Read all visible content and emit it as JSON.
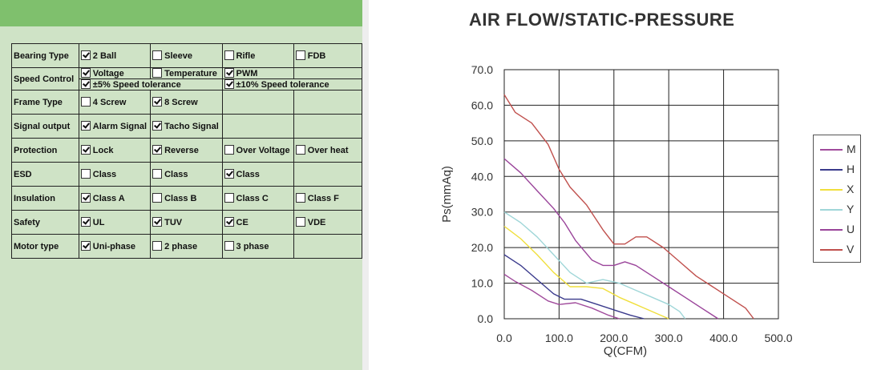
{
  "spec_table": {
    "rows": [
      {
        "label": "Bearing Type",
        "options": [
          {
            "text": "2 Ball",
            "checked": true
          },
          {
            "text": "Sleeve",
            "checked": false
          },
          {
            "text": "Rifle",
            "checked": false
          },
          {
            "text": "FDB",
            "checked": false
          }
        ]
      },
      {
        "label": "Speed Control",
        "sub": [
          [
            {
              "text": "Voltage",
              "checked": true
            },
            {
              "text": "Temperature",
              "checked": false
            },
            {
              "text": "PWM",
              "checked": true
            }
          ],
          [
            {
              "text": "±5% Speed tolerance",
              "checked": true
            },
            {
              "text": "±10% Speed tolerance",
              "checked": true
            }
          ]
        ]
      },
      {
        "label": "Frame Type",
        "options": [
          {
            "text": "4 Screw",
            "checked": false
          },
          {
            "text": "8 Screw",
            "checked": true
          }
        ]
      },
      {
        "label": "Signal output",
        "options": [
          {
            "text": "Alarm Signal",
            "checked": true
          },
          {
            "text": "Tacho Signal",
            "checked": true
          }
        ]
      },
      {
        "label": "Protection",
        "options": [
          {
            "text": "Lock",
            "checked": true
          },
          {
            "text": "Reverse",
            "checked": true
          },
          {
            "text": "Over Voltage",
            "checked": false
          },
          {
            "text": "Over heat",
            "checked": false
          }
        ]
      },
      {
        "label": "ESD",
        "options": [
          {
            "text": "Class",
            "checked": false
          },
          {
            "text": "Class",
            "checked": false
          },
          {
            "text": "Class",
            "checked": true
          }
        ]
      },
      {
        "label": "Insulation",
        "options": [
          {
            "text": "Class A",
            "checked": true
          },
          {
            "text": "Class B",
            "checked": false
          },
          {
            "text": "Class C",
            "checked": false
          },
          {
            "text": "Class F",
            "checked": false
          }
        ]
      },
      {
        "label": "Safety",
        "options": [
          {
            "text": "UL",
            "checked": true
          },
          {
            "text": "TUV",
            "checked": true
          },
          {
            "text": "CE",
            "checked": true
          },
          {
            "text": "VDE",
            "checked": false
          }
        ]
      },
      {
        "label": "Motor type",
        "options": [
          {
            "text": "Uni-phase",
            "checked": true
          },
          {
            "text": "2 phase",
            "checked": false
          },
          {
            "text": "3 phase",
            "checked": false
          }
        ]
      }
    ]
  },
  "chart_data": {
    "type": "line",
    "title": "AIR FLOW/STATIC-PRESSURE",
    "xlabel": "Q(CFM)",
    "ylabel": "Ps(mmAq)",
    "xlim": [
      0,
      500
    ],
    "ylim": [
      0,
      70
    ],
    "xticks": [
      "0.0",
      "100.0",
      "200.0",
      "300.0",
      "400.0",
      "500.0"
    ],
    "yticks": [
      "0.0",
      "10.0",
      "20.0",
      "30.0",
      "40.0",
      "50.0",
      "60.0",
      "70.0"
    ],
    "grid": true,
    "legend_position": "right",
    "series": [
      {
        "name": "M",
        "color": "#a04b9c",
        "x": [
          0,
          20,
          50,
          80,
          100,
          130,
          160,
          190,
          210
        ],
        "y": [
          12.5,
          10.5,
          8,
          5,
          4,
          4.5,
          3,
          1,
          0
        ]
      },
      {
        "name": "H",
        "color": "#3a3a8c",
        "x": [
          0,
          30,
          60,
          90,
          110,
          140,
          170,
          200,
          230,
          255
        ],
        "y": [
          18,
          15,
          11,
          7,
          5.5,
          5.5,
          4,
          2.5,
          1,
          0
        ]
      },
      {
        "name": "X",
        "color": "#f0df3c",
        "x": [
          0,
          30,
          60,
          90,
          120,
          150,
          180,
          210,
          240,
          270,
          300
        ],
        "y": [
          26,
          22.5,
          18,
          13,
          9,
          9,
          8.5,
          6,
          4,
          2,
          0
        ]
      },
      {
        "name": "Y",
        "color": "#9fd6d8",
        "x": [
          0,
          30,
          60,
          90,
          120,
          150,
          180,
          210,
          240,
          270,
          300,
          320,
          330
        ],
        "y": [
          30,
          27,
          23,
          18,
          13,
          10,
          11,
          10,
          8,
          6,
          4,
          2,
          0
        ]
      },
      {
        "name": "U",
        "color": "#9a449a",
        "x": [
          0,
          30,
          60,
          90,
          110,
          130,
          160,
          180,
          200,
          220,
          240,
          270,
          300,
          330,
          360,
          390
        ],
        "y": [
          45,
          41,
          36,
          31,
          27,
          22,
          16.5,
          15,
          15,
          16,
          15,
          12,
          9,
          6,
          3,
          0
        ]
      },
      {
        "name": "V",
        "color": "#c0504d",
        "x": [
          0,
          20,
          50,
          80,
          100,
          120,
          150,
          180,
          200,
          220,
          240,
          260,
          290,
          320,
          350,
          380,
          410,
          440,
          455
        ],
        "y": [
          63,
          58,
          55,
          49,
          42,
          37,
          32,
          25,
          21,
          21,
          23,
          23,
          20,
          16,
          12,
          9,
          6,
          3,
          0
        ]
      }
    ]
  }
}
